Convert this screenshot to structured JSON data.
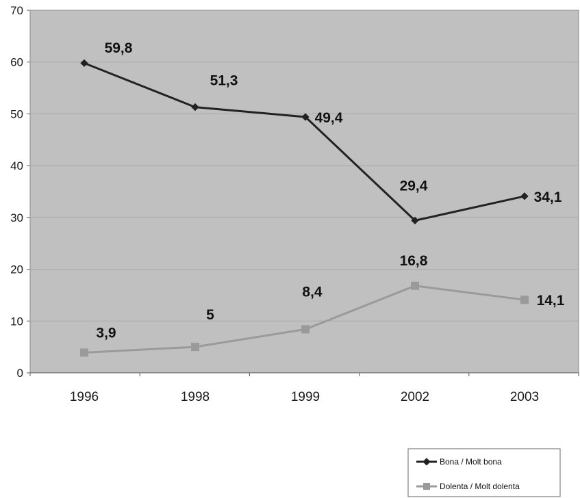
{
  "chart_data": {
    "type": "line",
    "categories": [
      "1996",
      "1998",
      "1999",
      "2002",
      "2003"
    ],
    "series": [
      {
        "name": "Bona / Molt bona",
        "values": [
          59.8,
          51.3,
          49.4,
          29.4,
          34.1
        ],
        "labels": [
          "59,8",
          "51,3",
          "49,4",
          "29,4",
          "34,1"
        ],
        "color": "#222222",
        "marker": "diamond"
      },
      {
        "name": "Dolenta / Molt dolenta",
        "values": [
          3.9,
          5,
          8.4,
          16.8,
          14.1
        ],
        "labels": [
          "3,9",
          "5",
          "8,4",
          "16,8",
          "14,1"
        ],
        "color": "#9a9a9a",
        "marker": "square"
      }
    ],
    "ylim": [
      0,
      70
    ],
    "yticks": [
      0,
      10,
      20,
      30,
      40,
      50,
      60,
      70
    ],
    "ytick_labels": [
      "0",
      "10",
      "20",
      "30",
      "40",
      "50",
      "60",
      "70"
    ],
    "grid": true,
    "plot_background": "#c0c0c0",
    "gridline_color": "#a8a8a8",
    "legend": "bottom-right"
  }
}
